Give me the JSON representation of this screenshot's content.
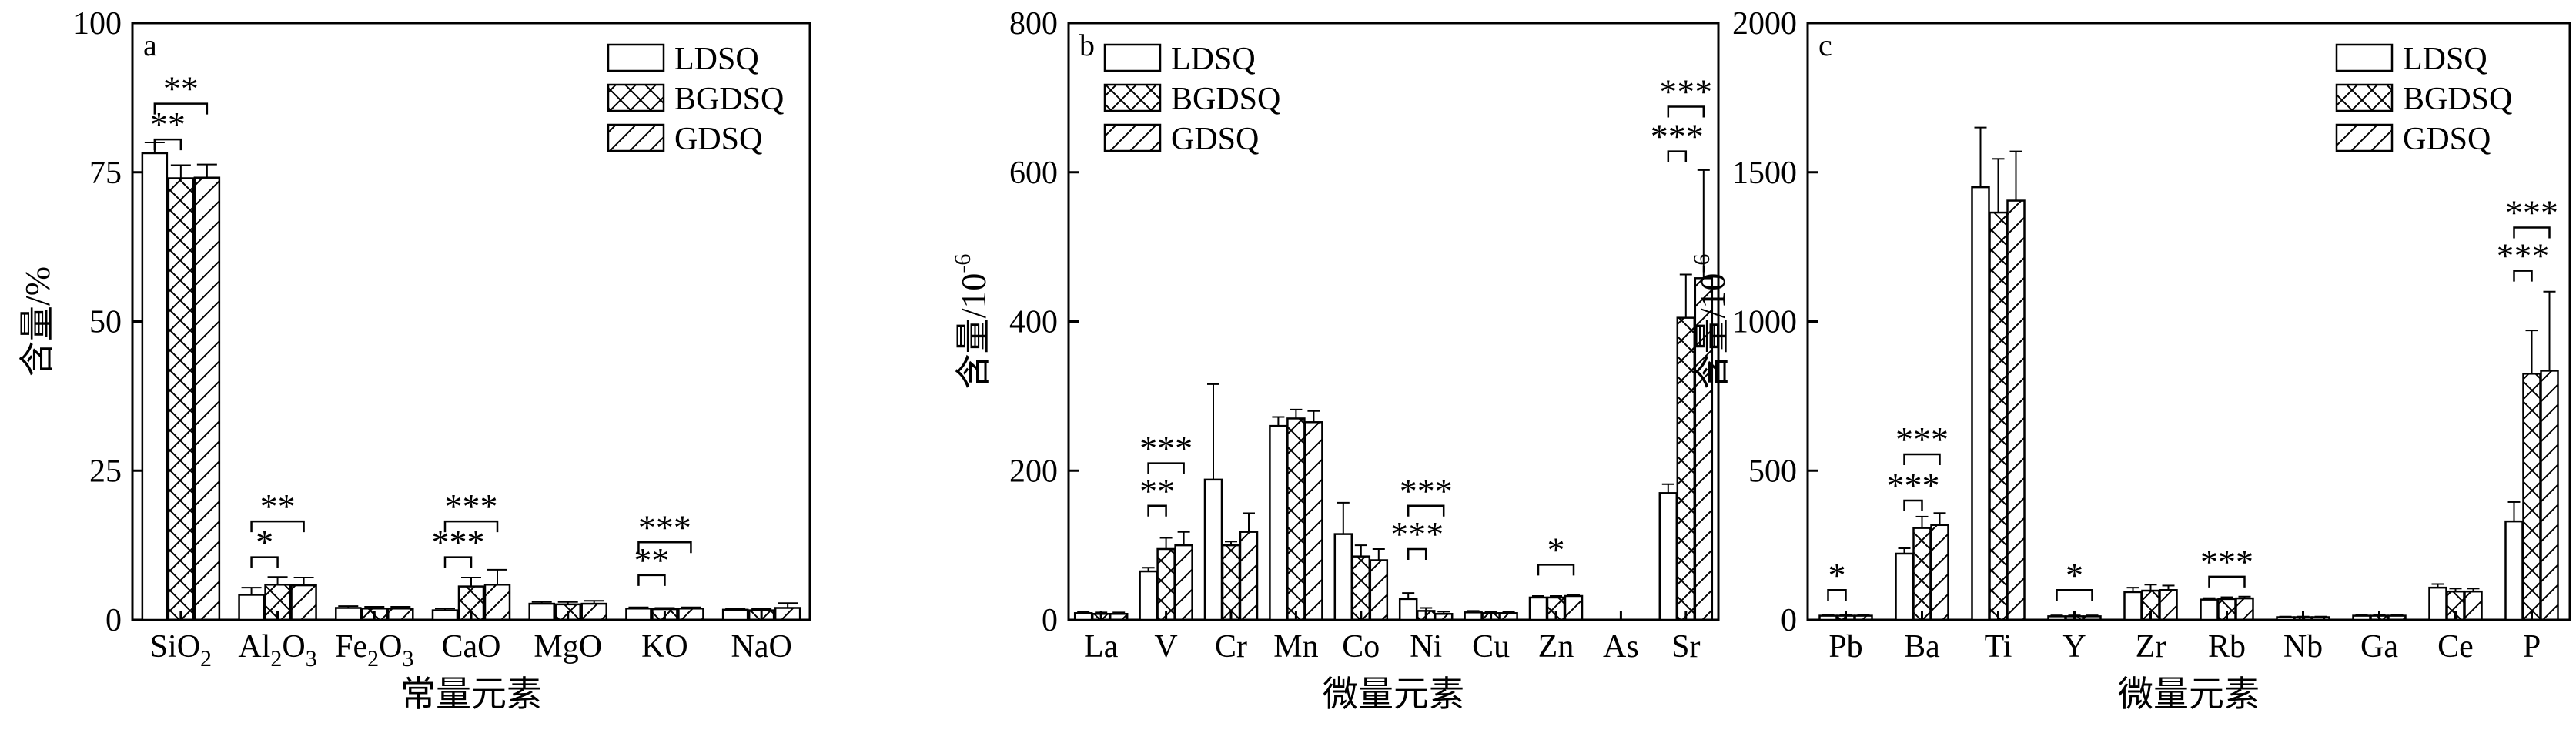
{
  "series_colors": {
    "bar_stroke": "#000000",
    "bar_fill": "#ffffff"
  },
  "chart_data": [
    {
      "type": "bar",
      "panel": "a",
      "ylabel": "含量/%",
      "xlabel": "常量元素",
      "ylim": [
        0,
        100
      ],
      "yticks": [
        0,
        25,
        50,
        75,
        100
      ],
      "categories": [
        "SiO2",
        "Al2O3",
        "Fe2O3",
        "CaO",
        "MgO",
        "KO",
        "NaO"
      ],
      "category_labels": [
        {
          "base": "SiO",
          "sub": "2"
        },
        {
          "base": "Al",
          "sub": "2",
          "base2": "O",
          "sub2": "3"
        },
        {
          "base": "Fe",
          "sub": "2",
          "base2": "O",
          "sub2": "3"
        },
        {
          "base": "CaO"
        },
        {
          "base": "MgO"
        },
        {
          "base": "KO"
        },
        {
          "base": "NaO"
        }
      ],
      "series": [
        {
          "name": "LDSQ",
          "pattern": "blank",
          "values": [
            78.2,
            4.2,
            2.0,
            1.6,
            2.7,
            1.9,
            1.7
          ],
          "errors": [
            1.8,
            1.2,
            0.3,
            0.3,
            0.3,
            0.2,
            0.2
          ]
        },
        {
          "name": "BGDSQ",
          "pattern": "cross",
          "values": [
            74.0,
            5.9,
            1.9,
            5.6,
            2.6,
            1.8,
            1.6
          ],
          "errors": [
            2.2,
            1.3,
            0.3,
            1.5,
            0.4,
            0.2,
            0.2
          ]
        },
        {
          "name": "GDSQ",
          "pattern": "slash",
          "values": [
            74.1,
            5.8,
            1.9,
            5.9,
            2.7,
            1.9,
            2.0
          ],
          "errors": [
            2.2,
            1.3,
            0.3,
            2.5,
            0.5,
            0.2,
            0.8
          ]
        }
      ],
      "significance": [
        {
          "category": "SiO2",
          "from": 0,
          "to": 1,
          "label": "**",
          "y": 80.5
        },
        {
          "category": "SiO2",
          "from": 0,
          "to": 2,
          "label": "**",
          "y": 86.5
        },
        {
          "category": "Al2O3",
          "from": 0,
          "to": 1,
          "label": "*",
          "y": 10.5
        },
        {
          "category": "Al2O3",
          "from": 0,
          "to": 2,
          "label": "**",
          "y": 16.5
        },
        {
          "category": "CaO",
          "from": 0,
          "to": 1,
          "label": "***",
          "y": 10.5
        },
        {
          "category": "CaO",
          "from": 0,
          "to": 2,
          "label": "***",
          "y": 16.5
        },
        {
          "category": "KO",
          "from": 0,
          "to": 1,
          "label": "**",
          "y": 7.5
        },
        {
          "category": "KO",
          "from": 0,
          "to": 2,
          "label": "***",
          "y": 13.0
        }
      ]
    },
    {
      "type": "bar",
      "panel": "b",
      "ylabel": "含量/10",
      "ylabel_sup": "-6",
      "xlabel": "微量元素",
      "ylim": [
        0,
        800
      ],
      "yticks": [
        0,
        200,
        400,
        600,
        800
      ],
      "categories": [
        "La",
        "V",
        "Cr",
        "Mn",
        "Co",
        "Ni",
        "Cu",
        "Zn",
        "As",
        "Sr"
      ],
      "category_labels": [
        {
          "base": "La"
        },
        {
          "base": "V"
        },
        {
          "base": "Cr"
        },
        {
          "base": "Mn"
        },
        {
          "base": "Co"
        },
        {
          "base": "Ni"
        },
        {
          "base": "Cu"
        },
        {
          "base": "Zn"
        },
        {
          "base": "As"
        },
        {
          "base": "Sr"
        }
      ],
      "series": [
        {
          "name": "LDSQ",
          "pattern": "blank",
          "values": [
            9,
            65,
            188,
            260,
            115,
            28,
            10,
            30,
            0,
            170
          ],
          "errors": [
            2,
            5,
            128,
            12,
            42,
            8,
            2,
            2,
            0,
            12
          ]
        },
        {
          "name": "BGDSQ",
          "pattern": "cross",
          "values": [
            8,
            95,
            100,
            270,
            85,
            12,
            9,
            30,
            0,
            405
          ],
          "errors": [
            2,
            15,
            5,
            12,
            15,
            4,
            2,
            2,
            0,
            58
          ]
        },
        {
          "name": "GDSQ",
          "pattern": "slash",
          "values": [
            8,
            100,
            118,
            265,
            80,
            8,
            9,
            32,
            0,
            458
          ],
          "errors": [
            2,
            18,
            25,
            15,
            15,
            3,
            2,
            2,
            0,
            145
          ]
        }
      ],
      "significance": [
        {
          "category": "V",
          "from": 0,
          "to": 1,
          "label": "**",
          "y": 153
        },
        {
          "category": "V",
          "from": 0,
          "to": 2,
          "label": "***",
          "y": 210
        },
        {
          "category": "Ni",
          "from": 0,
          "to": 1,
          "label": "***",
          "y": 95
        },
        {
          "category": "Ni",
          "from": 0,
          "to": 2,
          "label": "***",
          "y": 153
        },
        {
          "category": "Zn",
          "from": 0,
          "to": 2,
          "label": "*",
          "y": 74
        },
        {
          "category": "Sr",
          "from": 0,
          "to": 1,
          "label": "***",
          "y": 628
        },
        {
          "category": "Sr",
          "from": 0,
          "to": 2,
          "label": "***",
          "y": 688
        }
      ]
    },
    {
      "type": "bar",
      "panel": "c",
      "ylabel": "含量/10",
      "ylabel_sup": "-6",
      "xlabel": "微量元素",
      "ylim": [
        0,
        2000
      ],
      "yticks": [
        0,
        500,
        1000,
        1500,
        2000
      ],
      "categories": [
        "Pb",
        "Ba",
        "Ti",
        "Y",
        "Zr",
        "Rb",
        "Nb",
        "Ga",
        "Ce",
        "P"
      ],
      "category_labels": [
        {
          "base": "Pb"
        },
        {
          "base": "Ba"
        },
        {
          "base": "Ti"
        },
        {
          "base": "Y"
        },
        {
          "base": "Zr"
        },
        {
          "base": "Rb"
        },
        {
          "base": "Nb"
        },
        {
          "base": "Ga"
        },
        {
          "base": "Ce"
        },
        {
          "base": "P"
        }
      ],
      "series": [
        {
          "name": "LDSQ",
          "pattern": "blank",
          "values": [
            14,
            222,
            1450,
            12,
            93,
            68,
            9,
            14,
            108,
            330
          ],
          "errors": [
            3,
            18,
            200,
            3,
            15,
            5,
            2,
            2,
            12,
            65
          ]
        },
        {
          "name": "BGDSQ",
          "pattern": "cross",
          "values": [
            14,
            308,
            1365,
            12,
            98,
            70,
            9,
            14,
            95,
            825
          ],
          "errors": [
            3,
            38,
            180,
            3,
            20,
            6,
            2,
            2,
            10,
            145
          ]
        },
        {
          "name": "GDSQ",
          "pattern": "slash",
          "values": [
            14,
            318,
            1405,
            12,
            100,
            72,
            9,
            14,
            95,
            835
          ],
          "errors": [
            3,
            40,
            165,
            3,
            15,
            6,
            2,
            2,
            10,
            265
          ]
        }
      ],
      "significance": [
        {
          "category": "Pb",
          "from": 0,
          "to": 1,
          "label": "*",
          "y": 100
        },
        {
          "category": "Ba",
          "from": 0,
          "to": 1,
          "label": "***",
          "y": 400
        },
        {
          "category": "Ba",
          "from": 0,
          "to": 2,
          "label": "***",
          "y": 555
        },
        {
          "category": "Y",
          "from": 0,
          "to": 2,
          "label": "*",
          "y": 100
        },
        {
          "category": "Rb",
          "from": 0,
          "to": 2,
          "label": "***",
          "y": 145
        },
        {
          "category": "P",
          "from": 0,
          "to": 1,
          "label": "***",
          "y": 1170
        },
        {
          "category": "P",
          "from": 0,
          "to": 2,
          "label": "***",
          "y": 1315
        }
      ]
    }
  ]
}
